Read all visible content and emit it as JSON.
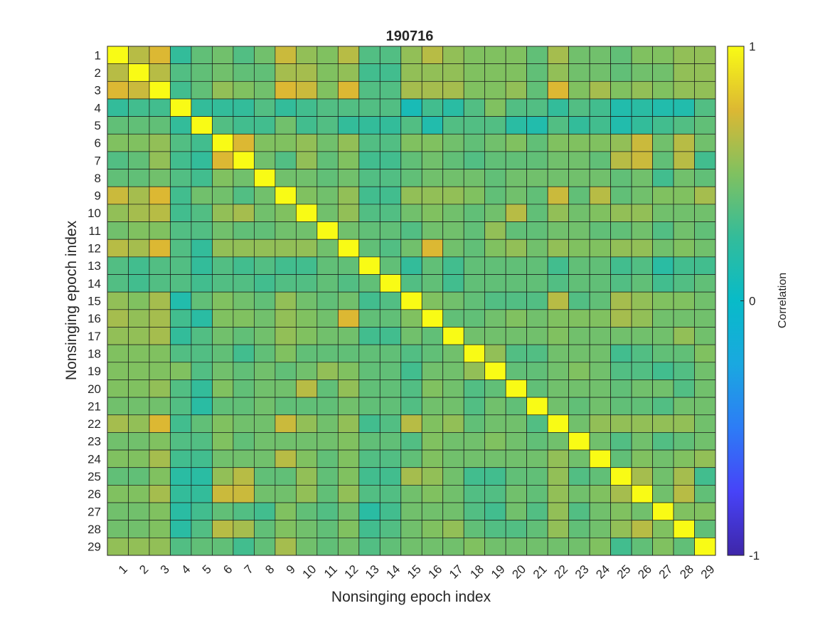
{
  "chart_data": {
    "type": "heatmap",
    "title": "190716",
    "xlabel": "Nonsinging epoch index",
    "ylabel": "Nonsinging epoch index",
    "x_categories": [
      "1",
      "2",
      "3",
      "4",
      "5",
      "6",
      "7",
      "8",
      "9",
      "10",
      "11",
      "12",
      "13",
      "14",
      "15",
      "16",
      "17",
      "18",
      "19",
      "20",
      "21",
      "22",
      "23",
      "24",
      "25",
      "26",
      "27",
      "28",
      "29"
    ],
    "y_categories": [
      "1",
      "2",
      "3",
      "4",
      "5",
      "6",
      "7",
      "8",
      "9",
      "10",
      "11",
      "12",
      "13",
      "14",
      "15",
      "16",
      "17",
      "18",
      "19",
      "20",
      "21",
      "22",
      "23",
      "24",
      "25",
      "26",
      "27",
      "28",
      "29"
    ],
    "colorbar": {
      "label": "Correlation",
      "range": [
        -1,
        1
      ],
      "ticks": [
        "1",
        "0",
        "-1"
      ],
      "tick_values": [
        1,
        0,
        -1
      ],
      "colormap": "parula"
    },
    "grid": true,
    "values": [
      [
        1.0,
        0.65,
        0.75,
        0.25,
        0.4,
        0.45,
        0.35,
        0.45,
        0.7,
        0.55,
        0.5,
        0.65,
        0.35,
        0.35,
        0.55,
        0.65,
        0.55,
        0.5,
        0.5,
        0.5,
        0.4,
        0.6,
        0.45,
        0.45,
        0.4,
        0.5,
        0.5,
        0.55,
        0.55
      ],
      [
        0.65,
        1.0,
        0.65,
        0.35,
        0.4,
        0.45,
        0.4,
        0.4,
        0.6,
        0.6,
        0.5,
        0.55,
        0.3,
        0.3,
        0.55,
        0.55,
        0.55,
        0.5,
        0.5,
        0.5,
        0.4,
        0.55,
        0.45,
        0.45,
        0.4,
        0.45,
        0.45,
        0.55,
        0.55
      ],
      [
        0.75,
        0.7,
        1.0,
        0.3,
        0.4,
        0.55,
        0.5,
        0.45,
        0.75,
        0.7,
        0.5,
        0.75,
        0.35,
        0.35,
        0.6,
        0.6,
        0.6,
        0.5,
        0.5,
        0.55,
        0.4,
        0.75,
        0.5,
        0.6,
        0.5,
        0.55,
        0.5,
        0.55,
        0.55
      ],
      [
        0.25,
        0.3,
        0.3,
        1.0,
        0.25,
        0.25,
        0.25,
        0.35,
        0.25,
        0.3,
        0.35,
        0.35,
        0.35,
        0.35,
        0.1,
        0.3,
        0.2,
        0.35,
        0.5,
        0.35,
        0.35,
        0.25,
        0.35,
        0.3,
        0.15,
        0.2,
        0.15,
        0.15,
        0.35
      ],
      [
        0.4,
        0.4,
        0.4,
        0.25,
        1.0,
        0.35,
        0.3,
        0.3,
        0.45,
        0.3,
        0.35,
        0.25,
        0.25,
        0.25,
        0.35,
        0.15,
        0.35,
        0.35,
        0.35,
        0.2,
        0.15,
        0.35,
        0.25,
        0.3,
        0.15,
        0.25,
        0.3,
        0.35,
        0.4
      ],
      [
        0.5,
        0.5,
        0.55,
        0.35,
        0.3,
        1.0,
        0.75,
        0.5,
        0.5,
        0.55,
        0.45,
        0.55,
        0.35,
        0.35,
        0.5,
        0.5,
        0.45,
        0.4,
        0.45,
        0.5,
        0.4,
        0.5,
        0.5,
        0.5,
        0.55,
        0.7,
        0.45,
        0.65,
        0.45
      ],
      [
        0.35,
        0.4,
        0.55,
        0.3,
        0.25,
        0.75,
        1.0,
        0.45,
        0.35,
        0.55,
        0.4,
        0.5,
        0.3,
        0.3,
        0.4,
        0.45,
        0.4,
        0.35,
        0.4,
        0.4,
        0.4,
        0.45,
        0.45,
        0.4,
        0.65,
        0.7,
        0.4,
        0.65,
        0.3
      ],
      [
        0.4,
        0.4,
        0.45,
        0.35,
        0.3,
        0.5,
        0.45,
        1.0,
        0.45,
        0.45,
        0.4,
        0.45,
        0.35,
        0.35,
        0.4,
        0.45,
        0.45,
        0.45,
        0.4,
        0.45,
        0.45,
        0.45,
        0.45,
        0.45,
        0.4,
        0.45,
        0.3,
        0.45,
        0.4
      ],
      [
        0.7,
        0.6,
        0.75,
        0.3,
        0.45,
        0.45,
        0.35,
        0.45,
        1.0,
        0.5,
        0.45,
        0.55,
        0.3,
        0.3,
        0.55,
        0.55,
        0.55,
        0.5,
        0.4,
        0.45,
        0.4,
        0.7,
        0.4,
        0.65,
        0.4,
        0.45,
        0.5,
        0.5,
        0.6
      ],
      [
        0.55,
        0.6,
        0.65,
        0.3,
        0.35,
        0.55,
        0.6,
        0.45,
        0.5,
        1.0,
        0.45,
        0.55,
        0.35,
        0.35,
        0.45,
        0.5,
        0.45,
        0.4,
        0.45,
        0.65,
        0.4,
        0.55,
        0.45,
        0.5,
        0.55,
        0.55,
        0.45,
        0.45,
        0.45
      ],
      [
        0.45,
        0.5,
        0.5,
        0.35,
        0.35,
        0.45,
        0.4,
        0.4,
        0.45,
        0.45,
        1.0,
        0.45,
        0.4,
        0.4,
        0.35,
        0.45,
        0.45,
        0.4,
        0.55,
        0.4,
        0.4,
        0.45,
        0.45,
        0.4,
        0.4,
        0.45,
        0.35,
        0.45,
        0.4
      ],
      [
        0.65,
        0.6,
        0.75,
        0.35,
        0.25,
        0.55,
        0.55,
        0.55,
        0.55,
        0.55,
        0.45,
        1.0,
        0.4,
        0.35,
        0.45,
        0.75,
        0.45,
        0.4,
        0.5,
        0.55,
        0.45,
        0.55,
        0.5,
        0.5,
        0.55,
        0.55,
        0.45,
        0.5,
        0.45
      ],
      [
        0.35,
        0.3,
        0.35,
        0.35,
        0.25,
        0.35,
        0.3,
        0.35,
        0.3,
        0.3,
        0.4,
        0.4,
        1.0,
        0.4,
        0.25,
        0.4,
        0.3,
        0.4,
        0.4,
        0.4,
        0.4,
        0.3,
        0.4,
        0.4,
        0.3,
        0.35,
        0.2,
        0.3,
        0.3
      ],
      [
        0.35,
        0.3,
        0.35,
        0.35,
        0.3,
        0.35,
        0.35,
        0.3,
        0.35,
        0.35,
        0.4,
        0.35,
        0.4,
        1.0,
        0.35,
        0.4,
        0.3,
        0.4,
        0.4,
        0.4,
        0.4,
        0.35,
        0.4,
        0.4,
        0.35,
        0.4,
        0.3,
        0.35,
        0.4
      ],
      [
        0.55,
        0.5,
        0.6,
        0.15,
        0.4,
        0.5,
        0.45,
        0.4,
        0.55,
        0.45,
        0.4,
        0.45,
        0.3,
        0.35,
        1.0,
        0.5,
        0.45,
        0.4,
        0.35,
        0.35,
        0.35,
        0.65,
        0.35,
        0.4,
        0.6,
        0.55,
        0.5,
        0.5,
        0.45
      ],
      [
        0.6,
        0.55,
        0.6,
        0.3,
        0.2,
        0.5,
        0.5,
        0.45,
        0.55,
        0.5,
        0.45,
        0.75,
        0.4,
        0.4,
        0.5,
        1.0,
        0.4,
        0.4,
        0.45,
        0.5,
        0.45,
        0.5,
        0.5,
        0.5,
        0.6,
        0.55,
        0.45,
        0.45,
        0.45
      ],
      [
        0.55,
        0.55,
        0.6,
        0.25,
        0.35,
        0.45,
        0.4,
        0.45,
        0.55,
        0.5,
        0.45,
        0.45,
        0.3,
        0.3,
        0.45,
        0.4,
        1.0,
        0.45,
        0.45,
        0.45,
        0.45,
        0.5,
        0.45,
        0.45,
        0.45,
        0.45,
        0.45,
        0.55,
        0.45
      ],
      [
        0.5,
        0.5,
        0.5,
        0.35,
        0.35,
        0.4,
        0.3,
        0.4,
        0.5,
        0.4,
        0.4,
        0.4,
        0.4,
        0.4,
        0.35,
        0.4,
        0.45,
        1.0,
        0.55,
        0.35,
        0.35,
        0.45,
        0.45,
        0.45,
        0.3,
        0.35,
        0.4,
        0.4,
        0.5
      ],
      [
        0.5,
        0.5,
        0.5,
        0.5,
        0.35,
        0.45,
        0.4,
        0.45,
        0.4,
        0.45,
        0.55,
        0.5,
        0.4,
        0.4,
        0.3,
        0.45,
        0.45,
        0.55,
        1.0,
        0.4,
        0.4,
        0.45,
        0.5,
        0.45,
        0.35,
        0.35,
        0.3,
        0.35,
        0.45
      ],
      [
        0.5,
        0.5,
        0.55,
        0.35,
        0.25,
        0.5,
        0.4,
        0.45,
        0.45,
        0.65,
        0.4,
        0.55,
        0.4,
        0.4,
        0.35,
        0.5,
        0.45,
        0.35,
        0.4,
        1.0,
        0.4,
        0.45,
        0.45,
        0.45,
        0.4,
        0.45,
        0.45,
        0.35,
        0.45
      ],
      [
        0.45,
        0.45,
        0.45,
        0.35,
        0.2,
        0.4,
        0.4,
        0.45,
        0.4,
        0.4,
        0.4,
        0.45,
        0.4,
        0.4,
        0.35,
        0.45,
        0.45,
        0.35,
        0.45,
        0.4,
        1.0,
        0.45,
        0.4,
        0.45,
        0.4,
        0.4,
        0.35,
        0.45,
        0.45
      ],
      [
        0.6,
        0.55,
        0.75,
        0.3,
        0.4,
        0.5,
        0.45,
        0.45,
        0.7,
        0.55,
        0.45,
        0.55,
        0.3,
        0.35,
        0.65,
        0.5,
        0.55,
        0.4,
        0.45,
        0.45,
        0.35,
        1.0,
        0.45,
        0.55,
        0.55,
        0.55,
        0.55,
        0.55,
        0.45
      ],
      [
        0.45,
        0.45,
        0.5,
        0.35,
        0.35,
        0.5,
        0.4,
        0.45,
        0.45,
        0.45,
        0.45,
        0.5,
        0.4,
        0.4,
        0.35,
        0.5,
        0.45,
        0.45,
        0.5,
        0.45,
        0.4,
        0.45,
        1.0,
        0.45,
        0.35,
        0.45,
        0.35,
        0.4,
        0.45
      ],
      [
        0.5,
        0.5,
        0.6,
        0.3,
        0.3,
        0.45,
        0.45,
        0.45,
        0.65,
        0.5,
        0.4,
        0.5,
        0.35,
        0.35,
        0.4,
        0.5,
        0.45,
        0.45,
        0.45,
        0.45,
        0.45,
        0.55,
        0.45,
        1.0,
        0.4,
        0.5,
        0.45,
        0.5,
        0.55
      ],
      [
        0.4,
        0.4,
        0.5,
        0.2,
        0.2,
        0.55,
        0.65,
        0.4,
        0.4,
        0.55,
        0.4,
        0.5,
        0.3,
        0.3,
        0.6,
        0.55,
        0.45,
        0.3,
        0.3,
        0.4,
        0.4,
        0.55,
        0.35,
        0.4,
        1.0,
        0.6,
        0.45,
        0.6,
        0.3
      ],
      [
        0.5,
        0.5,
        0.6,
        0.25,
        0.25,
        0.7,
        0.7,
        0.45,
        0.45,
        0.55,
        0.4,
        0.55,
        0.35,
        0.35,
        0.45,
        0.5,
        0.45,
        0.35,
        0.35,
        0.45,
        0.4,
        0.55,
        0.45,
        0.5,
        0.6,
        1.0,
        0.45,
        0.65,
        0.4
      ],
      [
        0.45,
        0.45,
        0.5,
        0.2,
        0.3,
        0.4,
        0.35,
        0.3,
        0.5,
        0.4,
        0.35,
        0.45,
        0.2,
        0.3,
        0.45,
        0.45,
        0.45,
        0.35,
        0.3,
        0.45,
        0.35,
        0.55,
        0.35,
        0.45,
        0.5,
        0.45,
        1.0,
        0.5,
        0.5
      ],
      [
        0.45,
        0.45,
        0.5,
        0.2,
        0.35,
        0.65,
        0.6,
        0.4,
        0.5,
        0.45,
        0.4,
        0.5,
        0.3,
        0.35,
        0.45,
        0.5,
        0.55,
        0.4,
        0.35,
        0.35,
        0.4,
        0.55,
        0.4,
        0.45,
        0.55,
        0.65,
        0.5,
        1.0,
        0.4
      ],
      [
        0.55,
        0.55,
        0.55,
        0.35,
        0.4,
        0.4,
        0.3,
        0.4,
        0.6,
        0.45,
        0.4,
        0.45,
        0.35,
        0.4,
        0.45,
        0.45,
        0.45,
        0.5,
        0.45,
        0.45,
        0.45,
        0.45,
        0.45,
        0.5,
        0.3,
        0.4,
        0.5,
        0.4,
        1.0
      ]
    ]
  }
}
